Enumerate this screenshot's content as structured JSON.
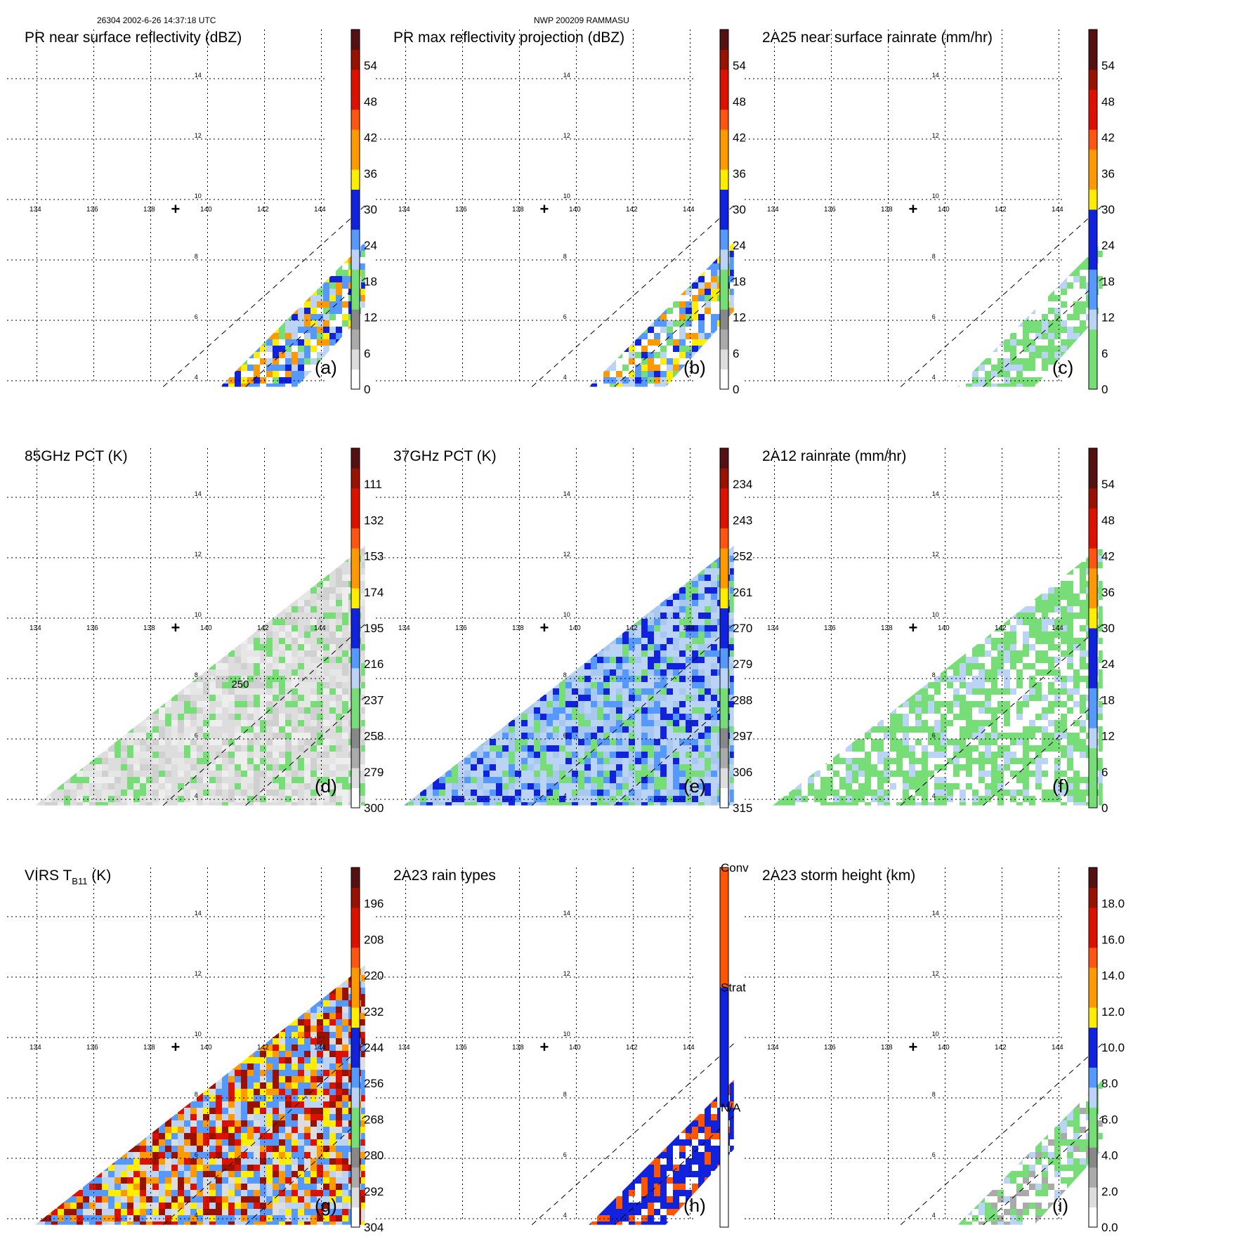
{
  "header": {
    "left": "26304 2002-6-26 14:37:18 UTC",
    "center": "NWP 200209 RAMMASU"
  },
  "map": {
    "lon_ticks": [
      "134",
      "136",
      "138",
      "140",
      "142",
      "144"
    ],
    "lat_ticks": [
      "4",
      "6",
      "8",
      "10",
      "12",
      "14"
    ],
    "storm_center": "+"
  },
  "colors": {
    "white": "#ffffff",
    "grey_light": "#dddddd",
    "grey": "#aaaaaa",
    "grey_dark": "#888888",
    "green": "#77dd77",
    "blue_light": "#bbd4f5",
    "blue": "#5599ff",
    "blue_dark": "#1122dd",
    "yellow": "#ffee00",
    "orange": "#ff9900",
    "orange_red": "#ff5511",
    "red": "#dd1100",
    "dark_red": "#991100",
    "maroon": "#551111",
    "conv": "#ff5500",
    "strat": "#1122dd"
  },
  "chart_data": [
    {
      "id": "a",
      "type": "heatmap",
      "title": "PR near surface reflectivity (dBZ)",
      "panel_label": "(a)",
      "colorbar_ticks": [
        "0",
        "6",
        "12",
        "18",
        "24",
        "30",
        "36",
        "42",
        "48",
        "54"
      ],
      "colorbar_range": [
        0,
        60
      ]
    },
    {
      "id": "b",
      "type": "heatmap",
      "title": "PR max reflectivity projection (dBZ)",
      "panel_label": "(b)",
      "colorbar_ticks": [
        "0",
        "6",
        "12",
        "18",
        "24",
        "30",
        "36",
        "42",
        "48",
        "54"
      ],
      "colorbar_range": [
        0,
        60
      ]
    },
    {
      "id": "c",
      "type": "heatmap",
      "title": "2A25 near surface rainrate (mm/hr)",
      "panel_label": "(c)",
      "colorbar_ticks": [
        "0",
        "6",
        "12",
        "18",
        "24",
        "30",
        "36",
        "42",
        "48",
        "54"
      ],
      "colorbar_range": [
        0,
        60
      ]
    },
    {
      "id": "d",
      "type": "heatmap",
      "title": "85GHz PCT (K)",
      "panel_label": "(d)",
      "colorbar_ticks": [
        "300",
        "279",
        "258",
        "237",
        "216",
        "195",
        "174",
        "153",
        "132",
        "111"
      ],
      "colorbar_range": [
        300,
        90
      ],
      "contour_label": "250"
    },
    {
      "id": "e",
      "type": "heatmap",
      "title": "37GHz PCT (K)",
      "panel_label": "(e)",
      "colorbar_ticks": [
        "315",
        "306",
        "297",
        "288",
        "279",
        "270",
        "261",
        "252",
        "243",
        "234"
      ],
      "colorbar_range": [
        315,
        225
      ]
    },
    {
      "id": "f",
      "type": "heatmap",
      "title": "2A12 rainrate (mm/hr)",
      "panel_label": "(f)",
      "colorbar_ticks": [
        "0",
        "6",
        "12",
        "18",
        "24",
        "30",
        "36",
        "42",
        "48",
        "54"
      ],
      "colorbar_range": [
        0,
        60
      ]
    },
    {
      "id": "g",
      "type": "heatmap",
      "title": "VIRS T",
      "title_sub": "B11",
      "title_suffix": " (K)",
      "panel_label": "(g)",
      "colorbar_ticks": [
        "304",
        "292",
        "280",
        "268",
        "256",
        "244",
        "232",
        "220",
        "208",
        "196"
      ],
      "colorbar_range": [
        304,
        184
      ]
    },
    {
      "id": "h",
      "type": "heatmap",
      "title": "2A23 rain types",
      "panel_label": "(h)",
      "colorbar_categories": [
        "N/A",
        "Strat",
        "Conv"
      ]
    },
    {
      "id": "i",
      "type": "heatmap",
      "title": "2A23 storm height (km)",
      "panel_label": "(i)",
      "colorbar_ticks": [
        "0.0",
        "2.0",
        "4.0",
        "6.0",
        "8.0",
        "10.0",
        "12.0",
        "14.0",
        "16.0",
        "18.0"
      ],
      "colorbar_range": [
        0,
        20
      ]
    }
  ]
}
